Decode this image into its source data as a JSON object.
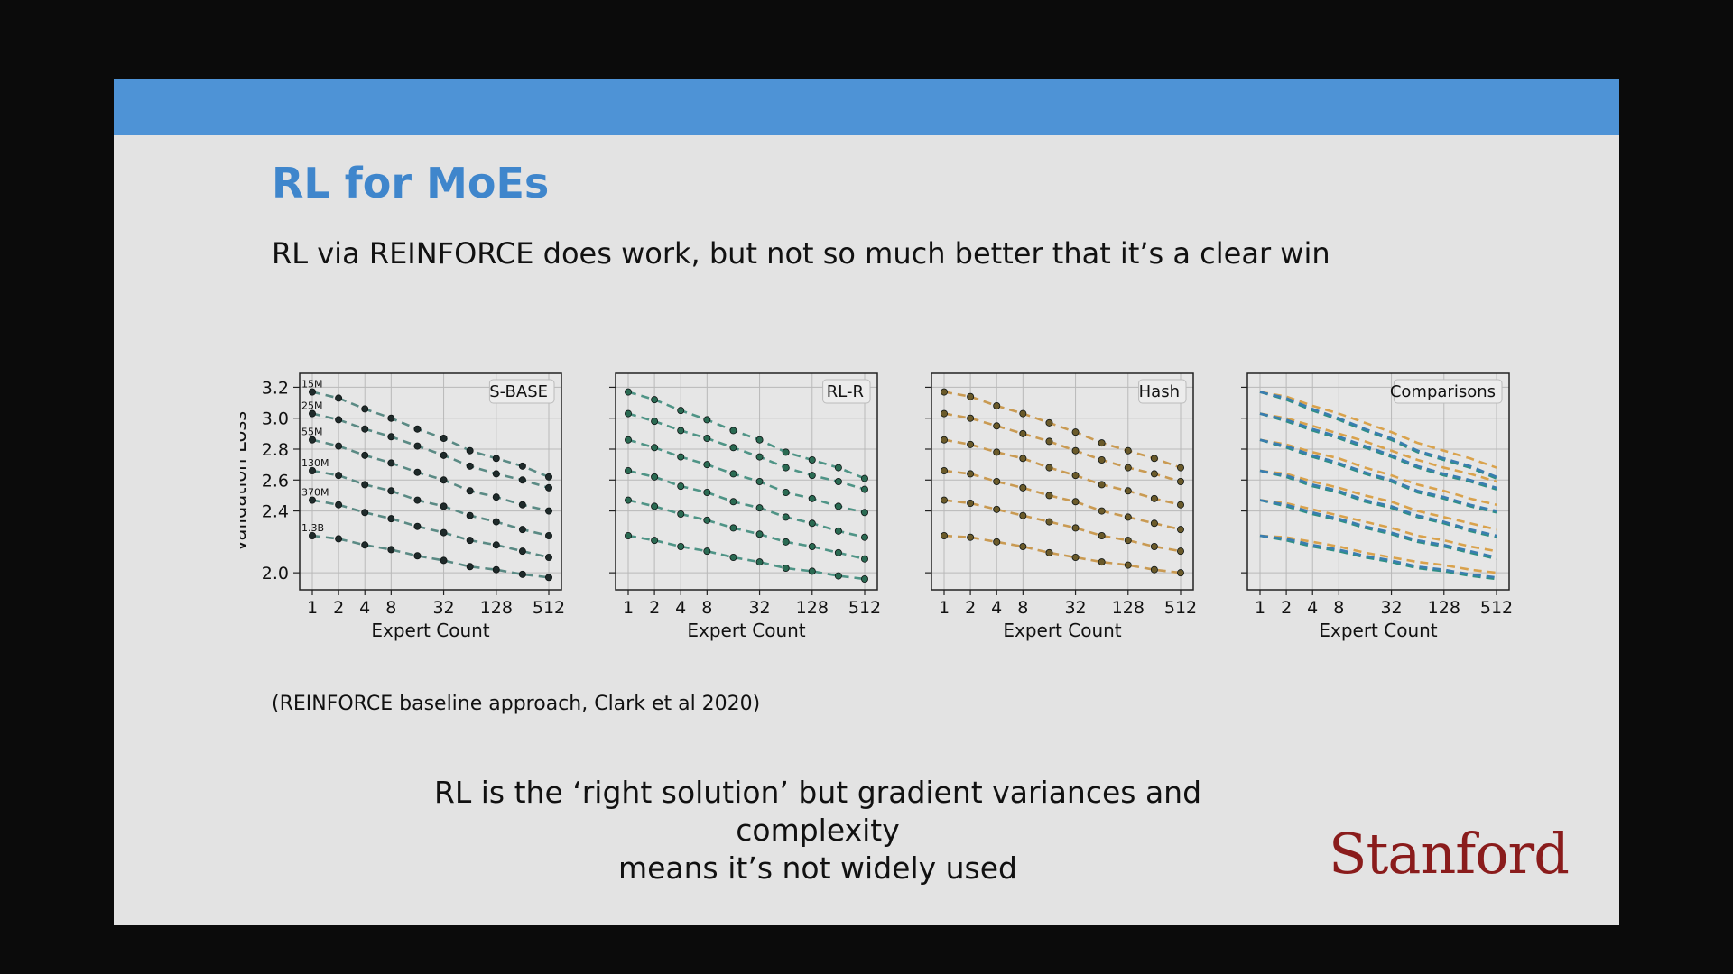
{
  "slide": {
    "title": "RL for MoEs",
    "subtitle": "RL via REINFORCE does work, but not so much better that it’s a clear win",
    "citation": "(REINFORCE baseline approach, Clark et al 2020)",
    "conclusion_line1": "RL is the ‘right solution’ but gradient variances and complexity",
    "conclusion_line2": "means it’s not widely used",
    "logo": "Stanford"
  },
  "colors": {
    "topbar": "#4e93d6",
    "title": "#3f86cc",
    "slide_bg": "#e3e3e3",
    "frame_bg": "#0b0b0b",
    "logo": "#8a1c1c"
  },
  "chart_data": [
    {
      "type": "line",
      "title": "S-BASE",
      "xlabel": "Expert Count",
      "ylabel": "Validation Loss",
      "x": [
        1,
        2,
        4,
        8,
        16,
        32,
        64,
        128,
        256,
        512
      ],
      "xticks": [
        "1",
        "2",
        "4",
        "8",
        "32",
        "128",
        "512"
      ],
      "yticks": [
        "2.0",
        "2.4",
        "2.6",
        "2.8",
        "3.0",
        "3.2"
      ],
      "ylim": [
        1.96,
        3.22
      ],
      "grid": true,
      "legend": "top-right",
      "line_color": "#5a8a84",
      "point_color": "#1f2a2a",
      "series": [
        {
          "name": "15M",
          "values": [
            3.17,
            3.13,
            3.06,
            3.0,
            2.93,
            2.87,
            2.79,
            2.74,
            2.69,
            2.62
          ]
        },
        {
          "name": "25M",
          "values": [
            3.03,
            2.99,
            2.93,
            2.88,
            2.82,
            2.76,
            2.69,
            2.64,
            2.6,
            2.55
          ]
        },
        {
          "name": "55M",
          "values": [
            2.86,
            2.82,
            2.76,
            2.71,
            2.65,
            2.6,
            2.53,
            2.49,
            2.44,
            2.4
          ]
        },
        {
          "name": "130M",
          "values": [
            2.66,
            2.63,
            2.57,
            2.53,
            2.47,
            2.43,
            2.37,
            2.33,
            2.28,
            2.24
          ]
        },
        {
          "name": "370M",
          "values": [
            2.47,
            2.44,
            2.39,
            2.35,
            2.3,
            2.26,
            2.21,
            2.18,
            2.14,
            2.1
          ]
        },
        {
          "name": "1.3B",
          "values": [
            2.24,
            2.22,
            2.18,
            2.15,
            2.11,
            2.08,
            2.04,
            2.02,
            1.99,
            1.97
          ]
        }
      ]
    },
    {
      "type": "line",
      "title": "RL-R",
      "xlabel": "Expert Count",
      "x": [
        1,
        2,
        4,
        8,
        16,
        32,
        64,
        128,
        256,
        512
      ],
      "xticks": [
        "1",
        "2",
        "4",
        "8",
        "32",
        "128",
        "512"
      ],
      "ylim": [
        1.96,
        3.22
      ],
      "grid": true,
      "legend": "top-right",
      "line_color": "#4f9486",
      "point_color": "#2a6a52",
      "series": [
        {
          "values": [
            3.17,
            3.12,
            3.05,
            2.99,
            2.92,
            2.86,
            2.78,
            2.73,
            2.68,
            2.61
          ]
        },
        {
          "values": [
            3.03,
            2.98,
            2.92,
            2.87,
            2.81,
            2.75,
            2.68,
            2.63,
            2.59,
            2.54
          ]
        },
        {
          "values": [
            2.86,
            2.81,
            2.75,
            2.7,
            2.64,
            2.59,
            2.52,
            2.48,
            2.43,
            2.39
          ]
        },
        {
          "values": [
            2.66,
            2.62,
            2.56,
            2.52,
            2.46,
            2.42,
            2.36,
            2.32,
            2.27,
            2.23
          ]
        },
        {
          "values": [
            2.47,
            2.43,
            2.38,
            2.34,
            2.29,
            2.25,
            2.2,
            2.17,
            2.13,
            2.09
          ]
        },
        {
          "values": [
            2.24,
            2.21,
            2.17,
            2.14,
            2.1,
            2.07,
            2.03,
            2.01,
            1.98,
            1.96
          ]
        }
      ]
    },
    {
      "type": "line",
      "title": "Hash",
      "xlabel": "Expert Count",
      "x": [
        1,
        2,
        4,
        8,
        16,
        32,
        64,
        128,
        256,
        512
      ],
      "xticks": [
        "1",
        "2",
        "4",
        "8",
        "32",
        "128",
        "512"
      ],
      "ylim": [
        1.96,
        3.22
      ],
      "grid": true,
      "legend": "top-right",
      "line_color": "#c99a52",
      "point_color": "#6a5a2a",
      "series": [
        {
          "values": [
            3.17,
            3.14,
            3.08,
            3.03,
            2.97,
            2.91,
            2.84,
            2.79,
            2.74,
            2.68
          ]
        },
        {
          "values": [
            3.03,
            3.0,
            2.95,
            2.9,
            2.85,
            2.79,
            2.73,
            2.68,
            2.64,
            2.59
          ]
        },
        {
          "values": [
            2.86,
            2.83,
            2.78,
            2.74,
            2.68,
            2.63,
            2.57,
            2.53,
            2.48,
            2.44
          ]
        },
        {
          "values": [
            2.66,
            2.64,
            2.59,
            2.55,
            2.5,
            2.46,
            2.4,
            2.36,
            2.32,
            2.28
          ]
        },
        {
          "values": [
            2.47,
            2.45,
            2.41,
            2.37,
            2.33,
            2.29,
            2.24,
            2.21,
            2.17,
            2.14
          ]
        },
        {
          "values": [
            2.24,
            2.23,
            2.2,
            2.17,
            2.13,
            2.1,
            2.07,
            2.05,
            2.02,
            2.0
          ]
        }
      ]
    },
    {
      "type": "line",
      "title": "Comparisons",
      "xlabel": "Expert Count",
      "x": [
        1,
        2,
        4,
        8,
        16,
        32,
        64,
        128,
        256,
        512
      ],
      "xticks": [
        "1",
        "2",
        "4",
        "8",
        "32",
        "128",
        "512"
      ],
      "ylim": [
        1.96,
        3.22
      ],
      "grid": true,
      "legend": "top-right",
      "series_colors": [
        "#d9a24c",
        "#2f8f86",
        "#3a7db0"
      ],
      "series": [
        {
          "values": [
            3.17,
            3.14,
            3.08,
            3.03,
            2.97,
            2.91,
            2.84,
            2.79,
            2.74,
            2.68
          ]
        },
        {
          "values": [
            3.03,
            3.0,
            2.95,
            2.9,
            2.85,
            2.79,
            2.73,
            2.68,
            2.64,
            2.59
          ]
        },
        {
          "values": [
            2.86,
            2.83,
            2.78,
            2.74,
            2.68,
            2.63,
            2.57,
            2.53,
            2.48,
            2.44
          ]
        },
        {
          "values": [
            2.66,
            2.64,
            2.59,
            2.55,
            2.5,
            2.46,
            2.4,
            2.36,
            2.32,
            2.28
          ]
        },
        {
          "values": [
            2.47,
            2.45,
            2.41,
            2.37,
            2.33,
            2.29,
            2.24,
            2.21,
            2.17,
            2.14
          ]
        },
        {
          "values": [
            2.24,
            2.23,
            2.2,
            2.17,
            2.13,
            2.1,
            2.07,
            2.05,
            2.02,
            2.0
          ]
        },
        {
          "values": [
            3.17,
            3.12,
            3.05,
            2.99,
            2.92,
            2.86,
            2.78,
            2.73,
            2.68,
            2.61
          ]
        },
        {
          "values": [
            3.03,
            2.98,
            2.92,
            2.87,
            2.81,
            2.75,
            2.68,
            2.63,
            2.59,
            2.54
          ]
        },
        {
          "values": [
            2.86,
            2.81,
            2.75,
            2.7,
            2.64,
            2.59,
            2.52,
            2.48,
            2.43,
            2.39
          ]
        },
        {
          "values": [
            2.66,
            2.62,
            2.56,
            2.52,
            2.46,
            2.42,
            2.36,
            2.32,
            2.27,
            2.23
          ]
        },
        {
          "values": [
            2.47,
            2.43,
            2.38,
            2.34,
            2.29,
            2.25,
            2.2,
            2.17,
            2.13,
            2.09
          ]
        },
        {
          "values": [
            2.24,
            2.21,
            2.17,
            2.14,
            2.1,
            2.07,
            2.03,
            2.01,
            1.98,
            1.96
          ]
        },
        {
          "values": [
            3.17,
            3.13,
            3.06,
            3.0,
            2.93,
            2.87,
            2.79,
            2.74,
            2.69,
            2.62
          ]
        },
        {
          "values": [
            3.03,
            2.99,
            2.93,
            2.88,
            2.82,
            2.76,
            2.69,
            2.64,
            2.6,
            2.55
          ]
        },
        {
          "values": [
            2.86,
            2.82,
            2.76,
            2.71,
            2.65,
            2.6,
            2.53,
            2.49,
            2.44,
            2.4
          ]
        },
        {
          "values": [
            2.66,
            2.63,
            2.57,
            2.53,
            2.47,
            2.43,
            2.37,
            2.33,
            2.28,
            2.24
          ]
        },
        {
          "values": [
            2.47,
            2.44,
            2.39,
            2.35,
            2.3,
            2.26,
            2.21,
            2.18,
            2.14,
            2.1
          ]
        },
        {
          "values": [
            2.24,
            2.22,
            2.18,
            2.15,
            2.11,
            2.08,
            2.04,
            2.02,
            1.99,
            1.97
          ]
        }
      ]
    }
  ]
}
